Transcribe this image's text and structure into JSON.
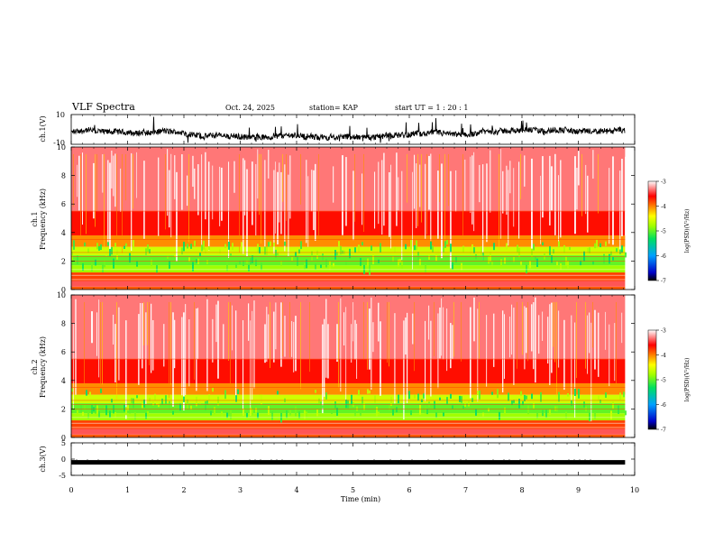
{
  "header": {
    "title": "VLF Spectra",
    "date": "Oct. 24, 2025",
    "station": "station= KAP",
    "start": "start  UT =   1 : 20 : 1"
  },
  "chart_data": [
    {
      "type": "line",
      "panel": "ch1-waveform",
      "ylabel": "ch.1(V)",
      "ylim": [
        -10,
        10
      ],
      "yticks": [
        "10",
        "-10"
      ],
      "x_range_min": [
        0,
        9.83
      ],
      "description_values": "noisy waveform oscillating roughly between -8 and 3 V"
    },
    {
      "type": "heatmap",
      "panel": "ch1-spectrogram",
      "ylabel": "ch.1\nFrequency (kHz)",
      "ylim": [
        0,
        10
      ],
      "yticks": [
        "10",
        "8",
        "6",
        "4",
        "2",
        "0"
      ],
      "colorbar": {
        "label": "log(PSD)(V²/Hz)",
        "range": [
          -7,
          -3
        ],
        "ticks": [
          "-3",
          "-4",
          "-5",
          "-6",
          "-7"
        ]
      }
    },
    {
      "type": "heatmap",
      "panel": "ch2-spectrogram",
      "ylabel": "ch.2\nFrequency (kHz)",
      "ylim": [
        0,
        10
      ],
      "yticks": [
        "10",
        "8",
        "6",
        "4",
        "2",
        "0"
      ],
      "colorbar": {
        "label": "log(PSD)(V²/Hz)",
        "range": [
          -7,
          -3
        ],
        "ticks": [
          "-3",
          "-4",
          "-5",
          "-6",
          "-7"
        ]
      }
    },
    {
      "type": "line",
      "panel": "ch3-waveform",
      "ylabel": "ch.3(V)",
      "ylim": [
        -5,
        5
      ],
      "yticks": [
        "5",
        "0",
        "-5"
      ],
      "level": -1
    }
  ],
  "xaxis": {
    "label": "Time (min)",
    "ticks": [
      "0",
      "1",
      "2",
      "3",
      "4",
      "5",
      "6",
      "7",
      "8",
      "9",
      "10"
    ],
    "range": [
      0,
      10
    ],
    "data_end": 9.83
  },
  "colorbar_label": "log(PSD)(V²/Hz)",
  "ch1_label": {
    "line1": "ch.1",
    "line2": "Frequency (kHz)"
  },
  "ch2_label": {
    "line1": "ch.2",
    "line2": "Frequency (kHz)"
  }
}
